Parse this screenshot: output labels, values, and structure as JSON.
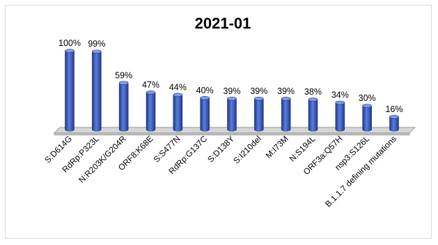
{
  "chart_data": {
    "type": "bar",
    "title": "2021-01",
    "xlabel": "",
    "ylabel": "",
    "ylim": [
      0,
      100
    ],
    "grid": false,
    "legend": "none",
    "style": "3d-cylinder",
    "categories": [
      "S:D614G",
      "RdRp:P323L",
      "N:R203K/G204R",
      "ORF8:K68E",
      "S:S477N",
      "RdRp:G137C",
      "S:D138Y",
      "S:I210del",
      "M:I73M",
      "N:S194L",
      "ORF3a:Q57H",
      "nsp3:S126L",
      "B.1.1.7 defining mutations"
    ],
    "values": [
      100,
      99,
      59,
      47,
      44,
      40,
      39,
      39,
      39,
      38,
      34,
      30,
      16
    ],
    "data_labels": [
      "100%",
      "99%",
      "59%",
      "47%",
      "44%",
      "40%",
      "39%",
      "39%",
      "39%",
      "38%",
      "34%",
      "30%",
      "16%"
    ],
    "colors": {
      "bar": "#3a5dc4",
      "bar_light": "#7f9ae8",
      "bar_dark": "#1f3a8a",
      "floor": "#d6d6d6",
      "floor_edge": "#9a9a9a"
    }
  }
}
